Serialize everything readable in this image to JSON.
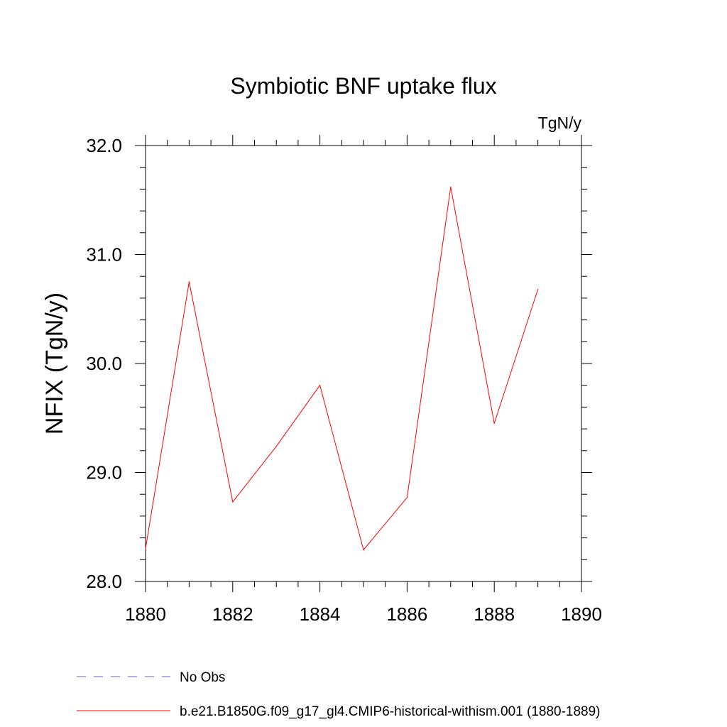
{
  "chart_data": {
    "type": "line",
    "title": "Symbiotic BNF uptake flux",
    "units_label": "TgN/y",
    "ylabel": "NFIX  (TgN/y)",
    "xlabel": "",
    "xlim": [
      1880,
      1890
    ],
    "ylim": [
      28.0,
      32.0
    ],
    "x_ticks": [
      "1880",
      "1882",
      "1884",
      "1886",
      "1888",
      "1890"
    ],
    "y_ticks": [
      "28.0",
      "29.0",
      "30.0",
      "31.0",
      "32.0"
    ],
    "grid": false,
    "legend_position": "bottom-left",
    "series": [
      {
        "name": "b.e21.B1850G.f09_g17_gl4.CMIP6-historical-withism.001 (1880-1889)",
        "color": "#ff0000",
        "style": "solid",
        "x": [
          1880,
          1881,
          1882,
          1883,
          1884,
          1885,
          1886,
          1887,
          1888,
          1889
        ],
        "values": [
          28.3,
          30.75,
          28.73,
          29.24,
          29.8,
          28.29,
          28.77,
          31.62,
          29.45,
          30.68
        ]
      }
    ],
    "legend": [
      {
        "label": "No Obs",
        "color": "#6a5acd",
        "style": "dashed"
      },
      {
        "label": "b.e21.B1850G.f09_g17_gl4.CMIP6-historical-withism.001 (1880-1889)",
        "color": "#ff0000",
        "style": "solid"
      }
    ]
  }
}
